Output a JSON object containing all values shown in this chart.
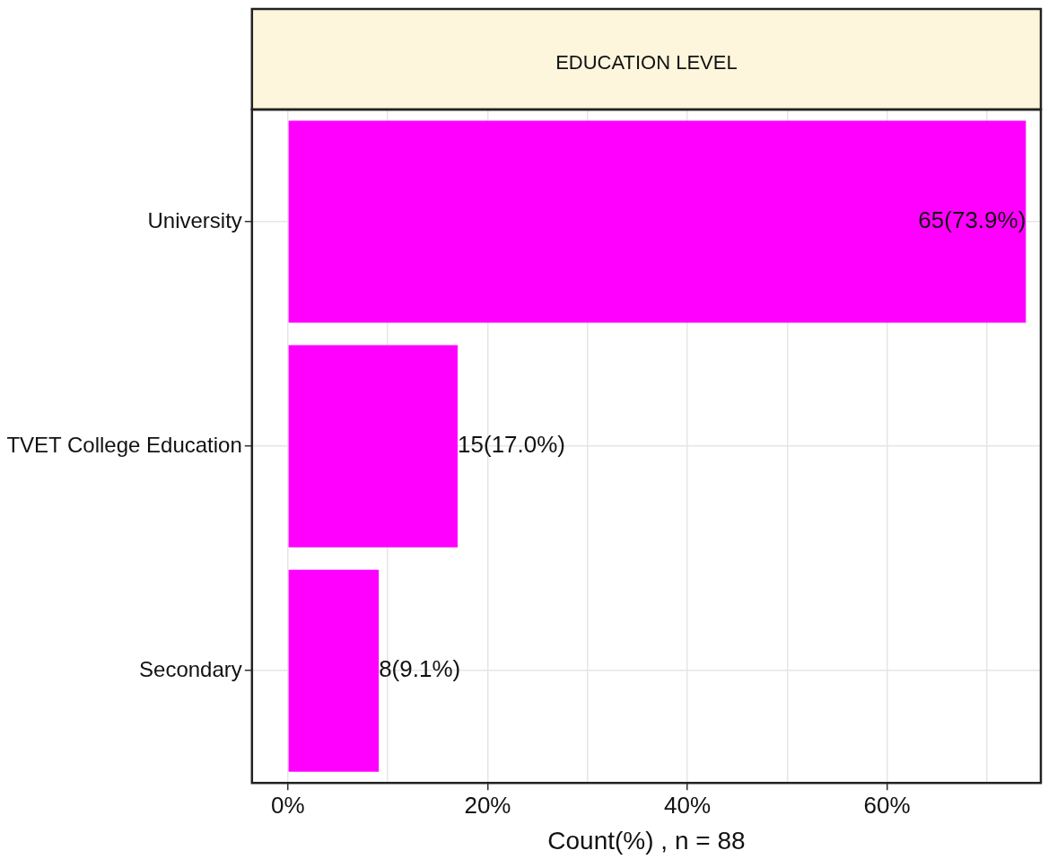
{
  "chart_data": {
    "type": "bar",
    "orientation": "horizontal",
    "title": "EDUCATION LEVEL",
    "xlabel": "Count(%) , n = 88",
    "categories": [
      "University",
      "TVET College Education",
      "Secondary"
    ],
    "values": [
      73.9,
      17.0,
      9.1
    ],
    "color": "#ff00ff",
    "value_labels": [
      "65(73.9%)",
      "15(17.0%)",
      "8(9.1%)"
    ],
    "xlim": [
      -3.6,
      75.4
    ],
    "xticks": [
      {
        "value": 0,
        "label": "0%"
      },
      {
        "value": 10,
        "label": null
      },
      {
        "value": 20,
        "label": "20%"
      },
      {
        "value": 30,
        "label": null
      },
      {
        "value": 40,
        "label": "40%"
      },
      {
        "value": 50,
        "label": null
      },
      {
        "value": 60,
        "label": "60%"
      },
      {
        "value": 70,
        "label": null
      }
    ],
    "grid": true
  }
}
